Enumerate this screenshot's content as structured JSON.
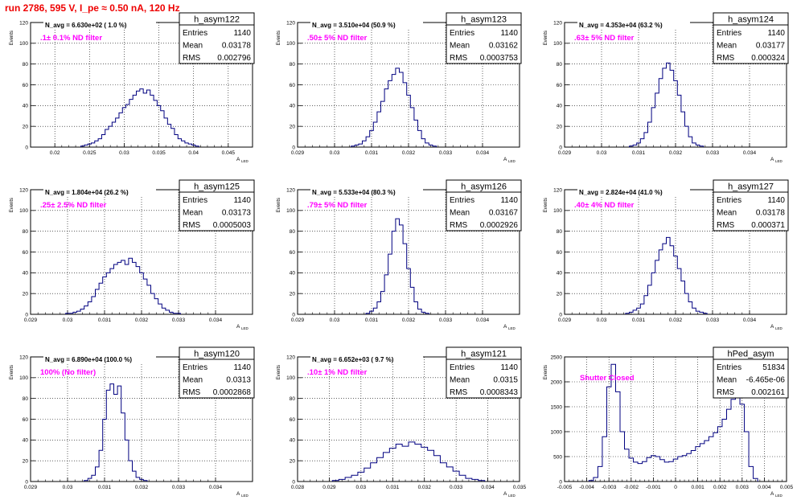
{
  "page": {
    "title": "run 2786,   595 V, I_pe ≈ 0.50 nA, 120 Hz"
  },
  "colors": {
    "hist": "#000080",
    "note": "#ff00ff",
    "title": "#ee0000",
    "grid": "#000000"
  },
  "chart_data": [
    {
      "type": "histogram",
      "name": "h_asym122",
      "navg": "N_avg = 6.630e+02 ( 1.0 %)",
      "note": ".1± 0.1% ND filter",
      "stats": {
        "entries": "1140",
        "mean": "0.03178",
        "rms": "0.002796"
      },
      "xlim": [
        0.0165,
        0.0485
      ],
      "ylim": [
        0,
        120
      ],
      "xticks": [
        "0.02",
        "0.025",
        "0.03",
        "0.035",
        "0.04",
        "0.045"
      ],
      "yticks": [
        "0",
        "20",
        "40",
        "60",
        "80",
        "100",
        "120"
      ],
      "xlabel": "A",
      "xlabel_sub": "LED",
      "ylabel": "Events",
      "x": [
        0.024,
        0.0245,
        0.025,
        0.0255,
        0.026,
        0.0265,
        0.027,
        0.0275,
        0.028,
        0.0285,
        0.029,
        0.0295,
        0.03,
        0.0305,
        0.031,
        0.0315,
        0.032,
        0.0325,
        0.033,
        0.0335,
        0.034,
        0.0345,
        0.035,
        0.0355,
        0.036,
        0.0365,
        0.037,
        0.0375,
        0.038,
        0.0385,
        0.039,
        0.0395,
        0.04,
        0.0405
      ],
      "y": [
        1,
        2,
        3,
        4,
        6,
        8,
        12,
        17,
        20,
        24,
        28,
        33,
        38,
        41,
        46,
        50,
        54,
        56,
        52,
        55,
        50,
        45,
        40,
        35,
        28,
        22,
        18,
        12,
        8,
        6,
        4,
        3,
        2,
        1
      ]
    },
    {
      "type": "histogram",
      "name": "h_asym123",
      "navg": "N_avg = 3.510e+04 (50.9 %)",
      "note": ".50± 5% ND filter",
      "stats": {
        "entries": "1140",
        "mean": "0.03162",
        "rms": "0.0003753"
      },
      "xlim": [
        0.029,
        0.035
      ],
      "ylim": [
        0,
        120
      ],
      "xticks": [
        "0.029",
        "0.03",
        "0.031",
        "0.032",
        "0.033",
        "0.034"
      ],
      "yticks": [
        "0",
        "20",
        "40",
        "60",
        "80",
        "100",
        "120"
      ],
      "xlabel": "A",
      "xlabel_sub": "LED",
      "ylabel": "Events",
      "x": [
        0.0305,
        0.0306,
        0.0307,
        0.0308,
        0.0309,
        0.031,
        0.0311,
        0.0312,
        0.0313,
        0.0314,
        0.0315,
        0.0316,
        0.0317,
        0.0318,
        0.0319,
        0.032,
        0.0321,
        0.0322,
        0.0323,
        0.0324,
        0.0325,
        0.0326,
        0.0327
      ],
      "y": [
        1,
        2,
        3,
        6,
        10,
        16,
        24,
        34,
        44,
        56,
        64,
        70,
        76,
        72,
        62,
        50,
        38,
        26,
        16,
        8,
        4,
        2,
        1
      ]
    },
    {
      "type": "histogram",
      "name": "h_asym124",
      "navg": "N_avg = 4.353e+04 (63.2 %)",
      "note": ".63± 5% ND filter",
      "stats": {
        "entries": "1140",
        "mean": "0.03177",
        "rms": "0.000324"
      },
      "xlim": [
        0.029,
        0.035
      ],
      "ylim": [
        0,
        120
      ],
      "xticks": [
        "0.029",
        "0.03",
        "0.031",
        "0.032",
        "0.033",
        "0.034"
      ],
      "yticks": [
        "0",
        "20",
        "40",
        "60",
        "80",
        "100",
        "120"
      ],
      "xlabel": "A",
      "xlabel_sub": "LED",
      "ylabel": "Events",
      "x": [
        0.0308,
        0.0309,
        0.031,
        0.0311,
        0.0312,
        0.0313,
        0.0314,
        0.0315,
        0.0316,
        0.0317,
        0.0318,
        0.0319,
        0.032,
        0.0321,
        0.0322,
        0.0323,
        0.0324,
        0.0325,
        0.0326,
        0.0327
      ],
      "y": [
        1,
        2,
        4,
        8,
        14,
        24,
        38,
        52,
        66,
        76,
        81,
        74,
        64,
        50,
        34,
        20,
        10,
        4,
        2,
        1
      ]
    },
    {
      "type": "histogram",
      "name": "h_asym125",
      "navg": "N_avg = 1.804e+04 (26.2 %)",
      "note": ".25± 2.5% ND filter",
      "stats": {
        "entries": "1140",
        "mean": "0.03173",
        "rms": "0.0005003"
      },
      "xlim": [
        0.029,
        0.035
      ],
      "ylim": [
        0,
        120
      ],
      "xticks": [
        "0.029",
        "0.03",
        "0.031",
        "0.032",
        "0.033",
        "0.034"
      ],
      "yticks": [
        "0",
        "20",
        "40",
        "60",
        "80",
        "100",
        "120"
      ],
      "xlabel": "A",
      "xlabel_sub": "LED",
      "ylabel": "Events",
      "x": [
        0.03,
        0.0301,
        0.0302,
        0.0303,
        0.0304,
        0.0305,
        0.0306,
        0.0307,
        0.0308,
        0.0309,
        0.031,
        0.0311,
        0.0312,
        0.0313,
        0.0314,
        0.0315,
        0.0316,
        0.0317,
        0.0318,
        0.0319,
        0.032,
        0.0321,
        0.0322,
        0.0323,
        0.0324,
        0.0325,
        0.0326,
        0.0327,
        0.0328,
        0.0329,
        0.033
      ],
      "y": [
        1,
        1,
        2,
        3,
        5,
        8,
        12,
        17,
        24,
        30,
        36,
        40,
        44,
        48,
        50,
        52,
        48,
        54,
        50,
        46,
        40,
        34,
        28,
        20,
        15,
        10,
        6,
        4,
        2,
        1,
        1
      ]
    },
    {
      "type": "histogram",
      "name": "h_asym126",
      "navg": "N_avg = 5.533e+04 (80.3 %)",
      "note": ".79± 5% ND filter",
      "stats": {
        "entries": "1140",
        "mean": "0.03167",
        "rms": "0.0002926"
      },
      "xlim": [
        0.029,
        0.035
      ],
      "ylim": [
        0,
        120
      ],
      "xticks": [
        "0.029",
        "0.03",
        "0.031",
        "0.032",
        "0.033",
        "0.034"
      ],
      "yticks": [
        "0",
        "20",
        "40",
        "60",
        "80",
        "100",
        "120"
      ],
      "xlabel": "A",
      "xlabel_sub": "LED",
      "ylabel": "Events",
      "x": [
        0.0309,
        0.031,
        0.0311,
        0.0312,
        0.0313,
        0.0314,
        0.0315,
        0.0316,
        0.0317,
        0.0318,
        0.0319,
        0.032,
        0.0321,
        0.0322,
        0.0323,
        0.0324,
        0.0325
      ],
      "y": [
        1,
        3,
        6,
        12,
        22,
        38,
        58,
        80,
        92,
        86,
        68,
        44,
        26,
        12,
        5,
        2,
        1
      ]
    },
    {
      "type": "histogram",
      "name": "h_asym127",
      "navg": "N_avg = 2.824e+04 (41.0 %)",
      "note": ".40± 4% ND filter",
      "stats": {
        "entries": "1140",
        "mean": "0.03178",
        "rms": "0.000371"
      },
      "xlim": [
        0.029,
        0.035
      ],
      "ylim": [
        0,
        120
      ],
      "xticks": [
        "0.029",
        "0.03",
        "0.031",
        "0.032",
        "0.033",
        "0.034"
      ],
      "yticks": [
        "0",
        "20",
        "40",
        "60",
        "80",
        "100",
        "120"
      ],
      "xlabel": "A",
      "xlabel_sub": "LED",
      "ylabel": "Events",
      "x": [
        0.0307,
        0.0308,
        0.0309,
        0.031,
        0.0311,
        0.0312,
        0.0313,
        0.0314,
        0.0315,
        0.0316,
        0.0317,
        0.0318,
        0.0319,
        0.032,
        0.0321,
        0.0322,
        0.0323,
        0.0324,
        0.0325,
        0.0326,
        0.0327,
        0.0328
      ],
      "y": [
        1,
        2,
        4,
        6,
        10,
        18,
        28,
        40,
        52,
        62,
        68,
        74,
        66,
        56,
        44,
        32,
        20,
        12,
        6,
        3,
        2,
        1
      ]
    },
    {
      "type": "histogram",
      "name": "h_asym120",
      "navg": "N_avg = 6.890e+04 (100.0 %)",
      "note": "100% (No filter)",
      "stats": {
        "entries": "1140",
        "mean": "0.0313",
        "rms": "0.0002868"
      },
      "xlim": [
        0.029,
        0.035
      ],
      "ylim": [
        0,
        120
      ],
      "xticks": [
        "0.029",
        "0.03",
        "0.031",
        "0.032",
        "0.033",
        "0.034"
      ],
      "yticks": [
        "0",
        "20",
        "40",
        "60",
        "80",
        "100",
        "120"
      ],
      "xlabel": "A",
      "xlabel_sub": "LED",
      "ylabel": "Events",
      "x": [
        0.0305,
        0.0306,
        0.0307,
        0.0308,
        0.0309,
        0.031,
        0.0311,
        0.0312,
        0.0313,
        0.0314,
        0.0315,
        0.0316,
        0.0317,
        0.0318,
        0.0319,
        0.032,
        0.0321
      ],
      "y": [
        1,
        3,
        6,
        14,
        30,
        60,
        88,
        94,
        84,
        92,
        66,
        40,
        20,
        10,
        4,
        2,
        1
      ]
    },
    {
      "type": "histogram",
      "name": "h_asym121",
      "navg": "N_avg = 6.652e+03 ( 9.7 %)",
      "note": ".10± 1% ND filter",
      "stats": {
        "entries": "1140",
        "mean": "0.0315",
        "rms": "0.0008343"
      },
      "xlim": [
        0.028,
        0.035
      ],
      "ylim": [
        0,
        120
      ],
      "xticks": [
        "0.028",
        "0.029",
        "0.03",
        "0.031",
        "0.032",
        "0.033",
        "0.034",
        "0.035"
      ],
      "yticks": [
        "0",
        "20",
        "40",
        "60",
        "80",
        "100",
        "120"
      ],
      "xlabel": "A",
      "xlabel_sub": "LED",
      "ylabel": "Events",
      "x": [
        0.0292,
        0.0294,
        0.0296,
        0.0298,
        0.03,
        0.0302,
        0.0304,
        0.0306,
        0.0308,
        0.031,
        0.0312,
        0.0314,
        0.0316,
        0.0318,
        0.032,
        0.0322,
        0.0324,
        0.0326,
        0.0328,
        0.033,
        0.0332,
        0.0334,
        0.0336,
        0.0338
      ],
      "y": [
        1,
        2,
        4,
        6,
        9,
        13,
        18,
        23,
        28,
        32,
        36,
        34,
        38,
        36,
        33,
        30,
        25,
        18,
        14,
        10,
        6,
        3,
        2,
        1
      ]
    },
    {
      "type": "histogram",
      "name": "hPed_asym",
      "navg": "",
      "note": "Shutter Closed",
      "stats": {
        "entries": "51834",
        "mean": "-6.465e-06",
        "rms": "0.002161"
      },
      "xlim": [
        -0.005,
        0.005
      ],
      "ylim": [
        0,
        2500
      ],
      "xticks": [
        "-0.005",
        "-0.004",
        "-0.003",
        "-0.002",
        "-0.001",
        "0",
        "0.001",
        "0.002",
        "0.003",
        "0.004",
        "0.005"
      ],
      "yticks": [
        "0",
        "500",
        "1000",
        "1500",
        "2000",
        "2500"
      ],
      "xlabel": "A",
      "xlabel_sub": "LED",
      "ylabel": "Events",
      "x": [
        -0.0038,
        -0.0036,
        -0.0034,
        -0.0032,
        -0.003,
        -0.0028,
        -0.0026,
        -0.0024,
        -0.0022,
        -0.002,
        -0.0018,
        -0.0016,
        -0.0014,
        -0.0012,
        -0.001,
        -0.0008,
        -0.0006,
        -0.0004,
        -0.0002,
        0.0,
        0.0002,
        0.0004,
        0.0006,
        0.0008,
        0.001,
        0.0012,
        0.0014,
        0.0016,
        0.0018,
        0.002,
        0.0022,
        0.0024,
        0.0026,
        0.0028,
        0.003,
        0.0032,
        0.0034,
        0.0036
      ],
      "y": [
        20,
        80,
        300,
        900,
        1900,
        2350,
        1800,
        1000,
        650,
        470,
        390,
        360,
        400,
        480,
        520,
        500,
        440,
        390,
        400,
        450,
        500,
        520,
        560,
        620,
        700,
        760,
        820,
        900,
        980,
        1100,
        1250,
        1450,
        1650,
        1750,
        1550,
        1000,
        300,
        60
      ]
    }
  ]
}
